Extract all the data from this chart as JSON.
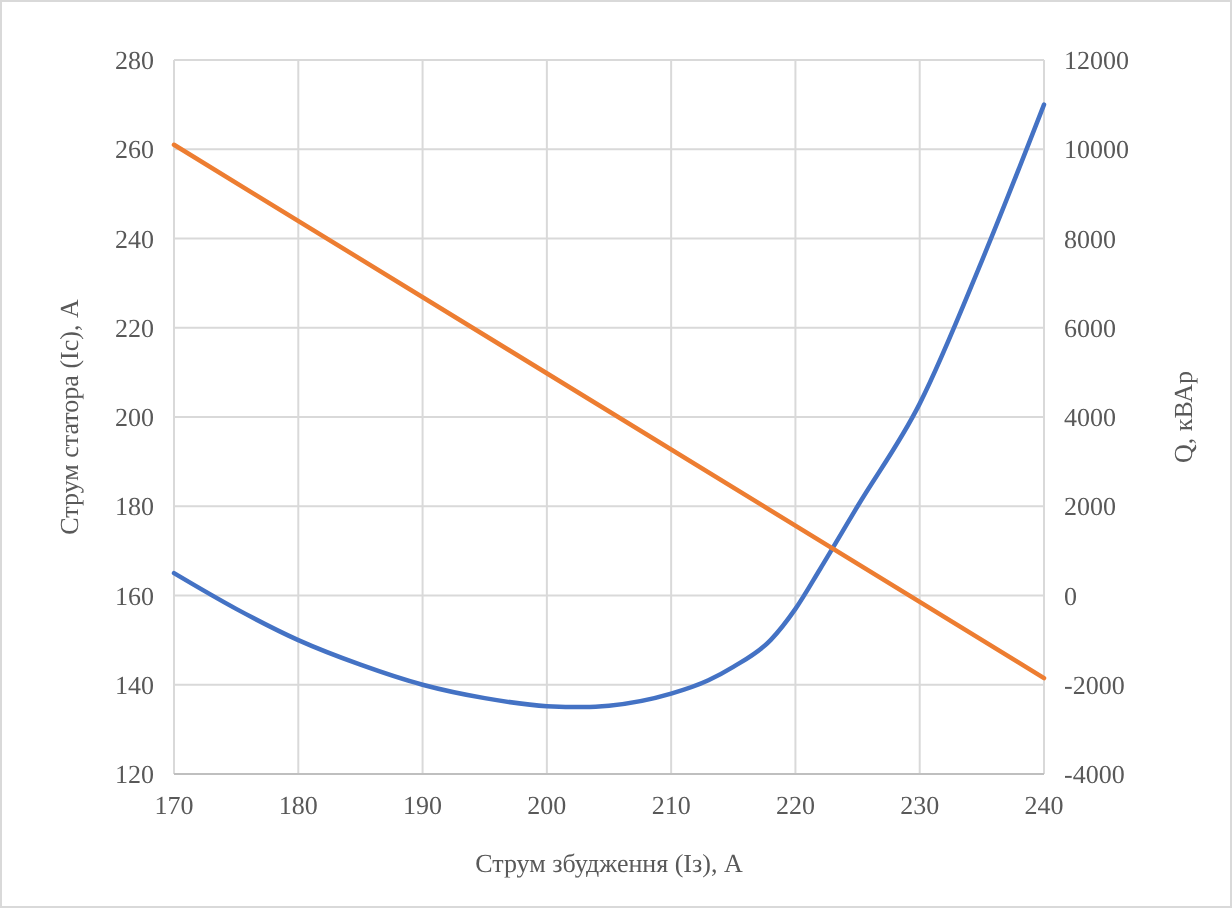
{
  "chart_data": {
    "type": "line",
    "xlabel": "Струм збудження (Із), А",
    "ylabel": "Струм статора (Іс), А",
    "y2label": "Q, кВАр",
    "xlim": [
      170,
      240
    ],
    "xticks": [
      170,
      180,
      190,
      200,
      210,
      220,
      230,
      240
    ],
    "ylim": [
      120,
      280
    ],
    "yticks": [
      120,
      140,
      160,
      180,
      200,
      220,
      240,
      260,
      280
    ],
    "y2lim": [
      -4000,
      12000
    ],
    "y2ticks": [
      -4000,
      -2000,
      0,
      2000,
      4000,
      6000,
      8000,
      10000,
      12000
    ],
    "grid": true,
    "series": [
      {
        "color": "#4472c4",
        "x": [
          170,
          175,
          180,
          185,
          190,
          195,
          200,
          203,
          205,
          210,
          213,
          215,
          218,
          220,
          222,
          225,
          230,
          235,
          240
        ],
        "values": [
          165,
          157,
          150,
          144.5,
          140,
          137,
          135.2,
          135,
          135.3,
          138,
          141,
          144,
          150,
          157,
          166,
          180,
          203,
          235,
          270
        ]
      },
      {
        "color": "#ed7d31",
        "axis": "y2",
        "x": [
          170,
          240
        ],
        "values": [
          10100,
          -1850
        ]
      }
    ]
  }
}
